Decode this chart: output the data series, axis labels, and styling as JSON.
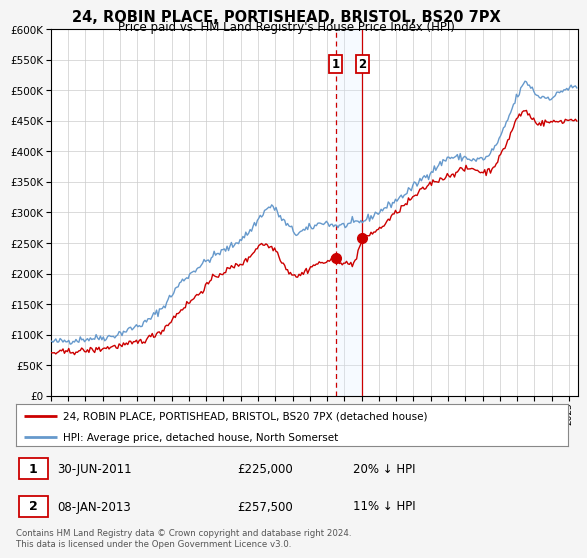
{
  "title": "24, ROBIN PLACE, PORTISHEAD, BRISTOL, BS20 7PX",
  "subtitle": "Price paid vs. HM Land Registry's House Price Index (HPI)",
  "ylim": [
    0,
    600000
  ],
  "yticks": [
    0,
    50000,
    100000,
    150000,
    200000,
    250000,
    300000,
    350000,
    400000,
    450000,
    500000,
    550000,
    600000
  ],
  "x_start_year": 1995,
  "x_end_year": 2025,
  "sale1_year": 2011.5,
  "sale1_price": 225000,
  "sale1_date": "30-JUN-2011",
  "sale1_pct": "20% ↓ HPI",
  "sale2_year": 2013.04,
  "sale2_price": 257500,
  "sale2_date": "08-JAN-2013",
  "sale2_pct": "11% ↓ HPI",
  "legend_line1": "24, ROBIN PLACE, PORTISHEAD, BRISTOL, BS20 7PX (detached house)",
  "legend_line2": "HPI: Average price, detached house, North Somerset",
  "footer": "Contains HM Land Registry data © Crown copyright and database right 2024.\nThis data is licensed under the Open Government Licence v3.0.",
  "color_red": "#cc0000",
  "color_blue": "#6699cc",
  "color_shading": "#ddeeff",
  "bg_color": "#f5f5f5"
}
